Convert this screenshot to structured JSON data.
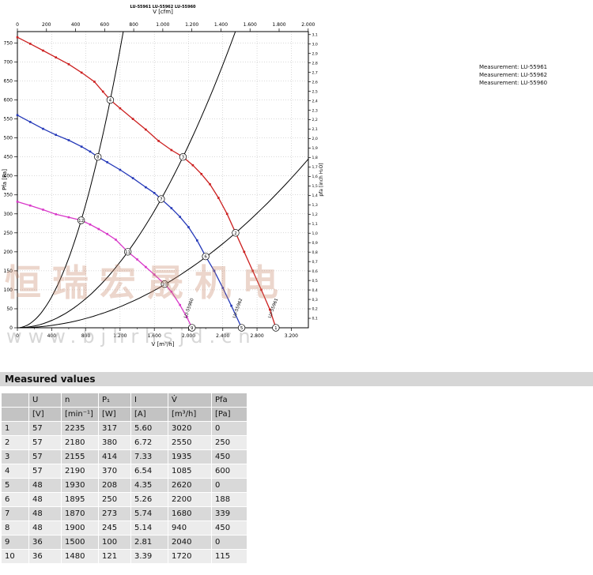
{
  "legend": {
    "items": [
      "Measurement: LU-55961",
      "Measurement: LU-55962",
      "Measurement: LU-55960"
    ]
  },
  "watermark": {
    "text": "恒瑞宏晟机电",
    "url": "www.bjhrhsjd.cn"
  },
  "chart_data": {
    "type": "line",
    "header_text": "LU-55961  LU-55962  LU-55960",
    "x_axis_bottom": {
      "label": "V [m³/h]",
      "min": 0,
      "max": 3400,
      "tick_step": 400,
      "tick_max": 3200
    },
    "x_axis_top": {
      "label": "V [cfm]",
      "min": 0,
      "max": 2000,
      "tick_step": 200,
      "cfm_to_m3h": 1.699
    },
    "y_axis_left": {
      "label": "Pfa [Pa]",
      "min": 0,
      "max": 780,
      "tick_step": 50,
      "tick_max": 750
    },
    "y_axis_right": {
      "label": "pfa [inch H₂O]",
      "min": 0,
      "max": 3.1,
      "tick_step": 0.1,
      "inch_to_pa": 249.089
    },
    "grid": true,
    "legend_position": "outside-right",
    "series": [
      {
        "name": "Measurement: LU-55961",
        "color": "#cc2020",
        "points": [
          [
            0,
            765
          ],
          [
            150,
            748
          ],
          [
            300,
            730
          ],
          [
            450,
            712
          ],
          [
            600,
            694
          ],
          [
            750,
            672
          ],
          [
            900,
            648
          ],
          [
            1000,
            622
          ],
          [
            1085,
            600
          ],
          [
            1200,
            578
          ],
          [
            1350,
            550
          ],
          [
            1500,
            522
          ],
          [
            1650,
            492
          ],
          [
            1800,
            468
          ],
          [
            1935,
            450
          ],
          [
            2050,
            428
          ],
          [
            2150,
            405
          ],
          [
            2250,
            378
          ],
          [
            2350,
            342
          ],
          [
            2450,
            300
          ],
          [
            2550,
            250
          ],
          [
            2650,
            200
          ],
          [
            2750,
            150
          ],
          [
            2850,
            100
          ],
          [
            2950,
            48
          ],
          [
            3020,
            0
          ]
        ]
      },
      {
        "name": "Measurement: LU-55962",
        "color": "#2438b8",
        "points": [
          [
            0,
            560
          ],
          [
            150,
            542
          ],
          [
            300,
            524
          ],
          [
            450,
            508
          ],
          [
            600,
            494
          ],
          [
            750,
            477
          ],
          [
            850,
            464
          ],
          [
            940,
            450
          ],
          [
            1050,
            436
          ],
          [
            1200,
            416
          ],
          [
            1350,
            394
          ],
          [
            1500,
            370
          ],
          [
            1600,
            355
          ],
          [
            1680,
            339
          ],
          [
            1800,
            315
          ],
          [
            1900,
            292
          ],
          [
            2000,
            265
          ],
          [
            2100,
            230
          ],
          [
            2200,
            188
          ],
          [
            2300,
            150
          ],
          [
            2400,
            105
          ],
          [
            2500,
            58
          ],
          [
            2620,
            0
          ]
        ]
      },
      {
        "name": "Measurement: LU-55960",
        "color": "#d836c8",
        "points": [
          [
            0,
            332
          ],
          [
            150,
            322
          ],
          [
            300,
            311
          ],
          [
            450,
            299
          ],
          [
            600,
            291
          ],
          [
            745,
            283
          ],
          [
            850,
            272
          ],
          [
            950,
            260
          ],
          [
            1050,
            247
          ],
          [
            1150,
            232
          ],
          [
            1290,
            200
          ],
          [
            1400,
            180
          ],
          [
            1500,
            160
          ],
          [
            1600,
            140
          ],
          [
            1720,
            115
          ],
          [
            1800,
            95
          ],
          [
            1900,
            60
          ],
          [
            1980,
            28
          ],
          [
            2040,
            0
          ]
        ]
      }
    ],
    "system_curves": [
      {
        "k": 0.0005096
      },
      {
        "k": 0.00012018
      },
      {
        "k": 3.845e-05
      }
    ],
    "operating_points": [
      {
        "n": 1,
        "v": 3020,
        "pa": 0
      },
      {
        "n": 2,
        "v": 2550,
        "pa": 250
      },
      {
        "n": 3,
        "v": 1935,
        "pa": 450
      },
      {
        "n": 4,
        "v": 1085,
        "pa": 600
      },
      {
        "n": 5,
        "v": 2620,
        "pa": 0
      },
      {
        "n": 6,
        "v": 2200,
        "pa": 188
      },
      {
        "n": 7,
        "v": 1680,
        "pa": 339
      },
      {
        "n": 8,
        "v": 940,
        "pa": 450
      },
      {
        "n": 9,
        "v": 2040,
        "pa": 0
      },
      {
        "n": 10,
        "v": 1720,
        "pa": 115
      },
      {
        "n": 11,
        "v": 1290,
        "pa": 200
      },
      {
        "n": 12,
        "v": 745,
        "pa": 283
      }
    ],
    "curve_end_labels": [
      {
        "text": "LU-55961",
        "color": "#cc2020",
        "v": 2960,
        "pa": 25,
        "rotation": -70
      },
      {
        "text": "LU-55962",
        "color": "#2438b8",
        "v": 2545,
        "pa": 25,
        "rotation": -70
      },
      {
        "text": "LU-55960",
        "color": "#d836c8",
        "v": 1975,
        "pa": 25,
        "rotation": -70
      }
    ]
  },
  "table": {
    "title": "Measured values",
    "columns": [
      "",
      "U",
      "n",
      "P₁",
      "I",
      "V̇",
      "Pfa"
    ],
    "units": [
      "",
      "[V]",
      "[min⁻¹]",
      "[W]",
      "[A]",
      "[m³/h]",
      "[Pa]"
    ],
    "rows": [
      [
        "1",
        "57",
        "2235",
        "317",
        "5.60",
        "3020",
        "0"
      ],
      [
        "2",
        "57",
        "2180",
        "380",
        "6.72",
        "2550",
        "250"
      ],
      [
        "3",
        "57",
        "2155",
        "414",
        "7.33",
        "1935",
        "450"
      ],
      [
        "4",
        "57",
        "2190",
        "370",
        "6.54",
        "1085",
        "600"
      ],
      [
        "5",
        "48",
        "1930",
        "208",
        "4.35",
        "2620",
        "0"
      ],
      [
        "6",
        "48",
        "1895",
        "250",
        "5.26",
        "2200",
        "188"
      ],
      [
        "7",
        "48",
        "1870",
        "273",
        "5.74",
        "1680",
        "339"
      ],
      [
        "8",
        "48",
        "1900",
        "245",
        "5.14",
        "940",
        "450"
      ],
      [
        "9",
        "36",
        "1500",
        "100",
        "2.81",
        "2040",
        "0"
      ],
      [
        "10",
        "36",
        "1480",
        "121",
        "3.39",
        "1720",
        "115"
      ]
    ]
  }
}
